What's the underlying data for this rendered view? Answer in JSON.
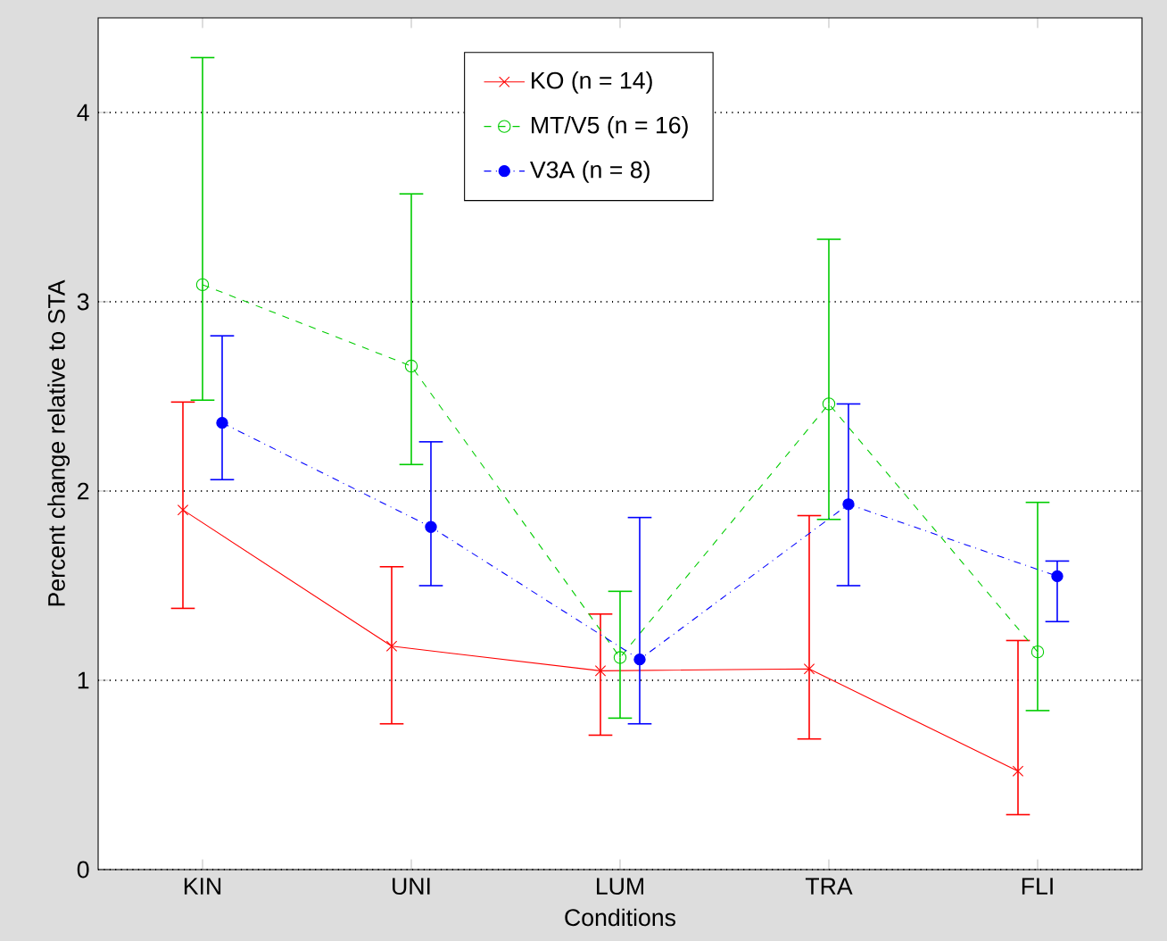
{
  "chart_data": {
    "type": "line",
    "xlabel": "Conditions",
    "ylabel": "Percent change relative to STA",
    "categories": [
      "KIN",
      "UNI",
      "LUM",
      "TRA",
      "FLI"
    ],
    "series": [
      {
        "name": "KO (n = 14)",
        "color": "#ff0000",
        "marker": "cross",
        "line_style": "solid",
        "values": [
          1.9,
          1.18,
          1.05,
          1.06,
          0.52
        ],
        "errors": [
          [
            1.38,
            2.47
          ],
          [
            0.77,
            1.6
          ],
          [
            0.71,
            1.35
          ],
          [
            0.69,
            1.87
          ],
          [
            0.29,
            1.21
          ]
        ]
      },
      {
        "name": "MT/V5 (n = 16)",
        "color": "#00cc00",
        "marker": "circle",
        "line_style": "dashed",
        "values": [
          3.09,
          2.66,
          1.12,
          2.46,
          1.15
        ],
        "errors": [
          [
            2.48,
            4.29
          ],
          [
            2.14,
            3.57
          ],
          [
            0.8,
            1.47
          ],
          [
            1.85,
            3.33
          ],
          [
            0.84,
            1.94
          ]
        ]
      },
      {
        "name": "V3A (n = 8)",
        "color": "#0000ff",
        "marker": "filled circle",
        "line_style": "dashdot",
        "values": [
          2.36,
          1.81,
          1.11,
          1.93,
          1.55
        ],
        "errors": [
          [
            2.06,
            2.82
          ],
          [
            1.5,
            2.26
          ],
          [
            0.77,
            1.86
          ],
          [
            1.5,
            2.46
          ],
          [
            1.31,
            1.63
          ]
        ]
      }
    ],
    "ylim": [
      0,
      4.5
    ],
    "yticks": [
      0,
      1,
      2,
      3,
      4
    ],
    "grid": "y",
    "legend": "top"
  }
}
